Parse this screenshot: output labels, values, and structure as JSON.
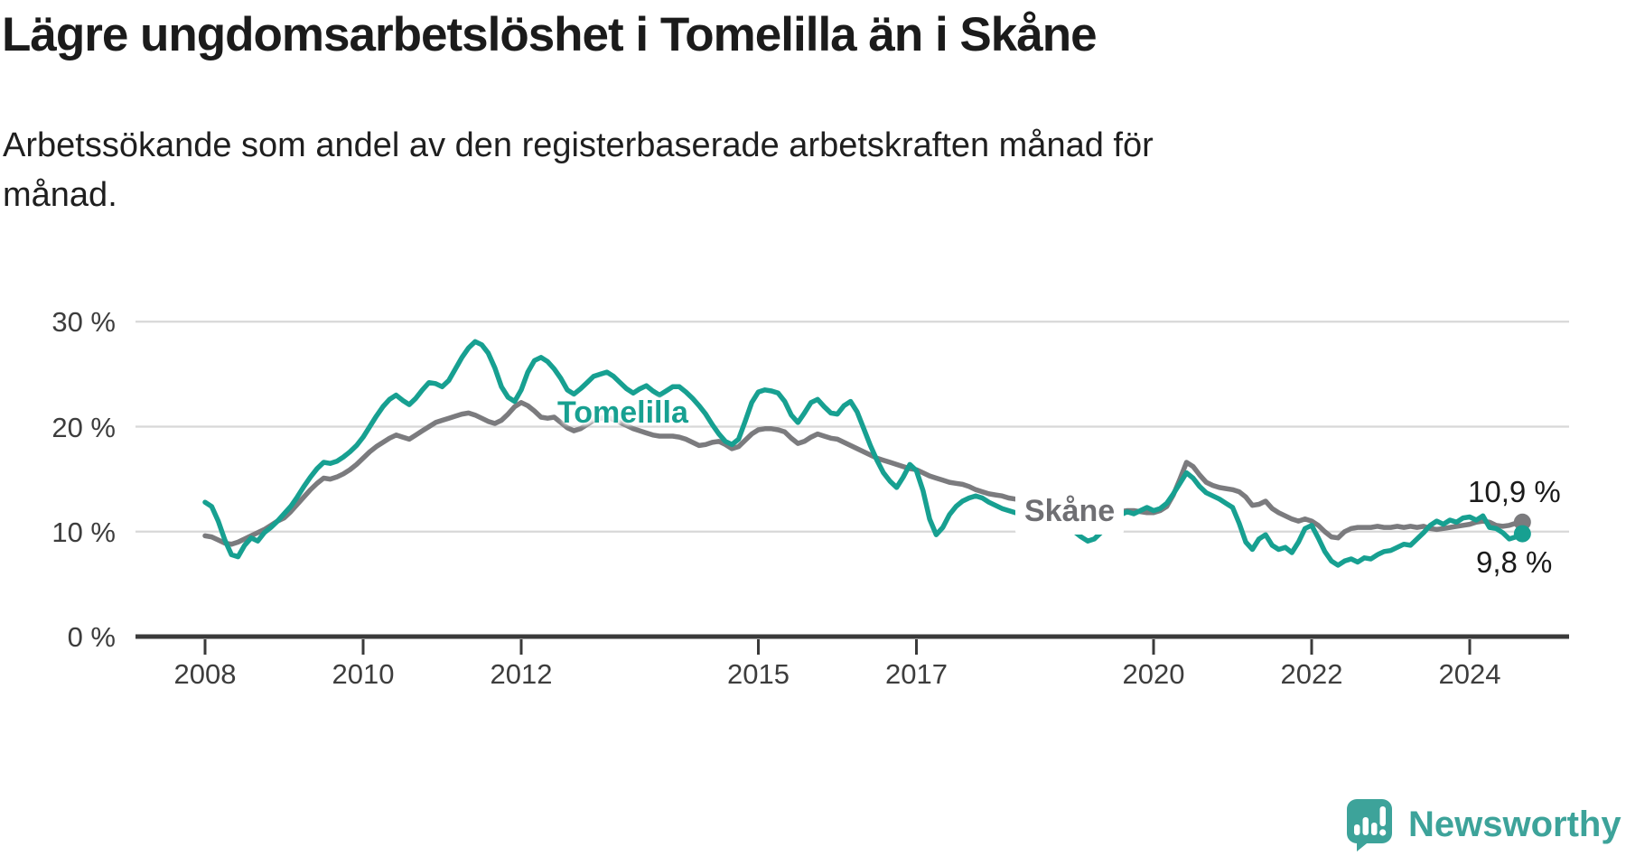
{
  "header": {
    "title": "Lägre ungdomsarbetslöshet i Tomelilla än i Skåne",
    "subtitle_lines": [
      "Arbetssökande som andel av den registerbaserade arbetskraften månad för",
      "månad."
    ]
  },
  "colors": {
    "tomelilla": "#17a091",
    "skane": "#7b7b7e",
    "grid": "#d8d8d8",
    "axis": "#3a3a3a",
    "tick_text": "#3d3d3d",
    "end_label_text": "#1a1a1a",
    "logo_teal": "#3da39a"
  },
  "y_axis": {
    "ticks": [
      {
        "label": "30 %",
        "value": 30
      },
      {
        "label": "20 %",
        "value": 20
      },
      {
        "label": "10 %",
        "value": 10
      },
      {
        "label": "0 %",
        "value": 0
      }
    ]
  },
  "x_axis": {
    "ticks": [
      {
        "label": "2008",
        "year": 2008
      },
      {
        "label": "2010",
        "year": 2010
      },
      {
        "label": "2012",
        "year": 2012
      },
      {
        "label": "2015",
        "year": 2015
      },
      {
        "label": "2017",
        "year": 2017
      },
      {
        "label": "2020",
        "year": 2020
      },
      {
        "label": "2022",
        "year": 2022
      },
      {
        "label": "2024",
        "year": 2024
      }
    ]
  },
  "series_labels": {
    "tomelilla": "Tomelilla",
    "skane": "Skåne"
  },
  "end_labels": {
    "skane": "10,9 %",
    "tomelilla": "9,8 %"
  },
  "logo": {
    "name": "Newsworthy"
  },
  "chart_data": {
    "type": "line",
    "x_start": 2008.0,
    "x_step_months": 1,
    "xlim": [
      2008.0,
      2024.75
    ],
    "ylim": [
      0,
      32
    ],
    "grid": "horizontal",
    "legend_position": "inline-labels",
    "series": [
      {
        "name": "Tomelilla",
        "color": "#17a091",
        "last_value_label": "9,8 %",
        "values": [
          12.8,
          12.4,
          11.0,
          9.2,
          7.8,
          7.6,
          8.7,
          9.4,
          9.1,
          9.9,
          10.4,
          11.0,
          11.7,
          12.4,
          13.3,
          14.3,
          15.2,
          16.0,
          16.6,
          16.5,
          16.7,
          17.1,
          17.6,
          18.2,
          19.0,
          20.0,
          21.0,
          21.9,
          22.6,
          23.0,
          22.5,
          22.1,
          22.7,
          23.5,
          24.2,
          24.1,
          23.8,
          24.4,
          25.5,
          26.6,
          27.5,
          28.1,
          27.8,
          27.0,
          25.6,
          23.8,
          22.8,
          22.4,
          23.5,
          25.2,
          26.3,
          26.6,
          26.2,
          25.5,
          24.6,
          23.5,
          23.1,
          23.6,
          24.2,
          24.8,
          25.0,
          25.2,
          24.8,
          24.2,
          23.6,
          23.2,
          23.6,
          23.9,
          23.4,
          23.0,
          23.4,
          23.8,
          23.8,
          23.3,
          22.7,
          22.0,
          21.2,
          20.2,
          19.3,
          18.6,
          18.3,
          18.8,
          20.5,
          22.3,
          23.3,
          23.5,
          23.4,
          23.2,
          22.4,
          21.1,
          20.4,
          21.3,
          22.3,
          22.6,
          21.9,
          21.3,
          21.2,
          22.0,
          22.4,
          21.4,
          19.8,
          18.2,
          16.8,
          15.6,
          14.8,
          14.2,
          15.2,
          16.4,
          15.8,
          13.9,
          11.2,
          9.7,
          10.4,
          11.6,
          12.4,
          12.9,
          13.2,
          13.4,
          13.2,
          12.8,
          12.5,
          12.2,
          12.0,
          11.8,
          11.9,
          12.1,
          11.8,
          11.5,
          11.2,
          11.0,
          10.7,
          10.3,
          10.0,
          9.5,
          9.1,
          9.3,
          9.9,
          10.6,
          11.2,
          11.6,
          11.9,
          11.7,
          12.0,
          12.3,
          12.0,
          12.2,
          12.7,
          13.6,
          14.6,
          15.6,
          15.1,
          14.3,
          13.7,
          13.4,
          13.1,
          12.7,
          12.3,
          10.8,
          9.0,
          8.3,
          9.3,
          9.7,
          8.7,
          8.3,
          8.5,
          8.0,
          9.0,
          10.3,
          10.6,
          9.4,
          8.1,
          7.2,
          6.8,
          7.2,
          7.4,
          7.1,
          7.5,
          7.4,
          7.8,
          8.1,
          8.2,
          8.5,
          8.8,
          8.7,
          9.3,
          9.9,
          10.6,
          11.0,
          10.7,
          11.1,
          10.9,
          11.3,
          11.4,
          11.1,
          11.5,
          10.4,
          10.3,
          9.9,
          9.3,
          9.5,
          9.8
        ]
      },
      {
        "name": "Skåne",
        "color": "#7b7b7e",
        "last_value_label": "10,9 %",
        "values": [
          9.6,
          9.5,
          9.2,
          8.9,
          8.8,
          9.0,
          9.3,
          9.6,
          9.9,
          10.2,
          10.6,
          11.0,
          11.3,
          11.9,
          12.6,
          13.3,
          14.0,
          14.6,
          15.1,
          15.0,
          15.2,
          15.5,
          15.9,
          16.4,
          17.0,
          17.6,
          18.1,
          18.5,
          18.9,
          19.2,
          19.0,
          18.8,
          19.2,
          19.6,
          20.0,
          20.4,
          20.6,
          20.8,
          21.0,
          21.2,
          21.3,
          21.1,
          20.8,
          20.5,
          20.3,
          20.6,
          21.2,
          21.9,
          22.3,
          22.0,
          21.5,
          20.9,
          20.8,
          20.9,
          20.4,
          19.9,
          19.6,
          19.8,
          20.2,
          20.6,
          20.8,
          20.9,
          20.7,
          20.4,
          20.1,
          19.8,
          19.6,
          19.4,
          19.2,
          19.1,
          19.1,
          19.1,
          19.0,
          18.8,
          18.5,
          18.2,
          18.3,
          18.5,
          18.6,
          18.3,
          17.9,
          18.1,
          18.7,
          19.3,
          19.7,
          19.8,
          19.8,
          19.7,
          19.5,
          18.9,
          18.4,
          18.6,
          19.0,
          19.3,
          19.1,
          18.9,
          18.8,
          18.5,
          18.2,
          17.9,
          17.6,
          17.3,
          17.0,
          16.8,
          16.6,
          16.4,
          16.2,
          16.0,
          15.9,
          15.6,
          15.3,
          15.1,
          14.9,
          14.7,
          14.6,
          14.5,
          14.3,
          14.0,
          13.8,
          13.6,
          13.5,
          13.4,
          13.2,
          13.1,
          13.0,
          12.9,
          12.8,
          12.8,
          12.7,
          12.6,
          12.5,
          12.4,
          12.4,
          12.3,
          12.2,
          12.1,
          12.0,
          11.9,
          11.9,
          11.9,
          12.0,
          12.0,
          11.9,
          11.8,
          11.8,
          12.0,
          12.4,
          13.5,
          15.0,
          16.6,
          16.2,
          15.4,
          14.7,
          14.4,
          14.2,
          14.1,
          14.0,
          13.8,
          13.3,
          12.5,
          12.6,
          12.9,
          12.2,
          11.8,
          11.5,
          11.2,
          11.0,
          11.2,
          11.0,
          10.6,
          10.0,
          9.5,
          9.4,
          10.0,
          10.3,
          10.4,
          10.4,
          10.4,
          10.5,
          10.4,
          10.4,
          10.5,
          10.4,
          10.5,
          10.4,
          10.5,
          10.3,
          10.2,
          10.3,
          10.4,
          10.5,
          10.6,
          10.7,
          10.9,
          11.0,
          10.9,
          10.6,
          10.5,
          10.6,
          10.8,
          10.9
        ]
      }
    ]
  }
}
